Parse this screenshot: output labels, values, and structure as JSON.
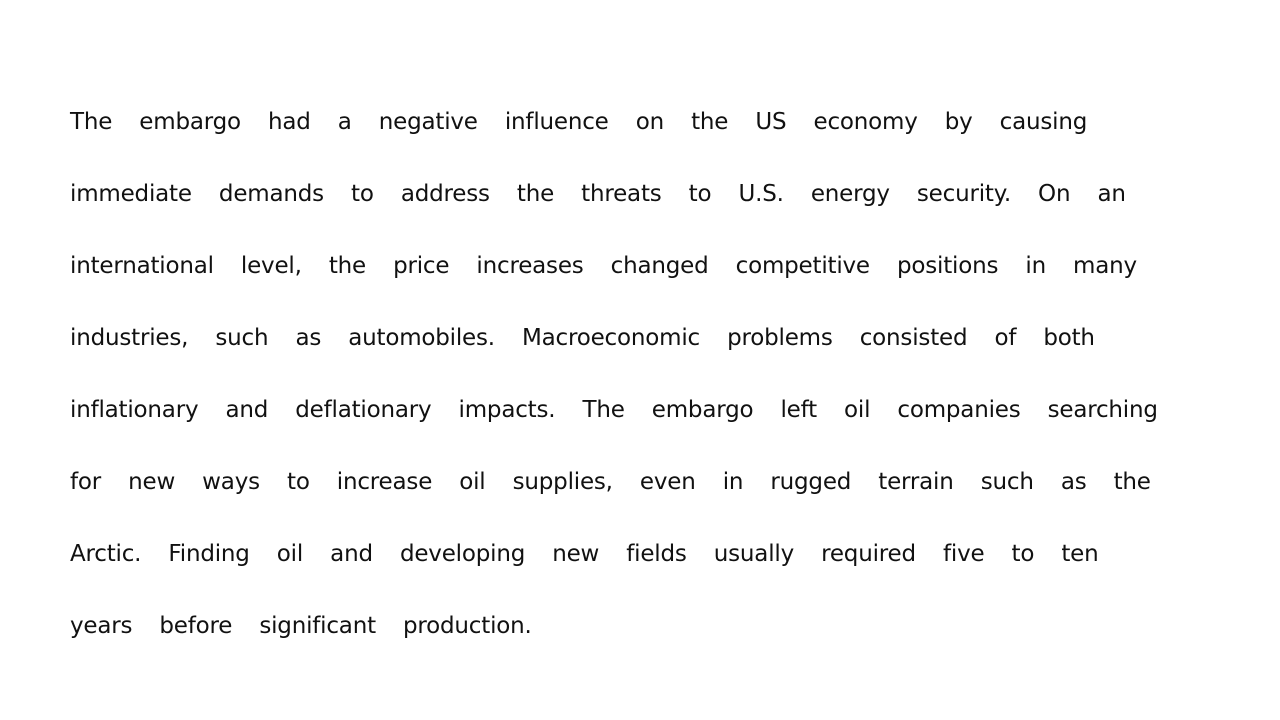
{
  "document": {
    "lines": [
      "The embargo had a negative influence on the US economy by causing",
      "immediate demands to address the threats to U.S. energy security. On an",
      "international level, the price increases changed competitive positions in many",
      "industries, such as automobiles. Macroeconomic problems consisted of both",
      "inflationary and deflationary impacts. The embargo left oil companies searching",
      "for new ways to increase oil supplies, even in rugged terrain such as the",
      "Arctic. Finding oil and developing new fields usually required five to ten",
      "years before significant production."
    ]
  }
}
